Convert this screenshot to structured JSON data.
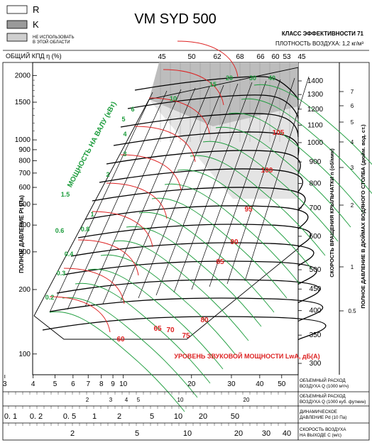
{
  "header": {
    "title": "VM SYD 500",
    "legend": [
      {
        "key": "R",
        "label": "R",
        "fill": "#ffffff"
      },
      {
        "key": "K",
        "label": "K",
        "fill": "#9a9a9a"
      },
      {
        "key": "na",
        "label": "НЕ ИСПОЛЬЗОВАТЬ",
        "label2": "В ЭТОЙ ОБЛАСТИ",
        "fill": "#cfcfcf"
      }
    ],
    "efficiency_class": "КЛАСС ЭФФЕКТИВНОСТИ 71",
    "air_density": "ПЛОТНОСТЬ ВОЗДУХА: 1,2 кг/м³",
    "total_efficiency_label": "ОБЩИЙ КПД η (%)"
  },
  "chart_data": {
    "type": "line",
    "ylabel": "ПОЛНОЕ ДАВЛЕНИЕ Pt (Па)",
    "xlabel": "ОБЪЕМНЫЙ РАСХОД ВОЗДУХА Q (1000 м³/ч)",
    "xlim": [
      1.8,
      60
    ],
    "ylim": [
      80,
      2300
    ],
    "x_scale": "log",
    "y_scale": "log",
    "y_ticks": [
      100,
      200,
      300,
      400,
      500,
      600,
      700,
      800,
      900,
      1000,
      1500,
      2000
    ],
    "x_ticks": [
      "2",
      "3",
      "4",
      "5",
      "6",
      "7",
      "8",
      "9",
      "10",
      "20",
      "30",
      "40",
      "50"
    ],
    "right_axis_rpm": {
      "label": "СКОРОСТЬ ВРАЩЕНИЯ КРЫЛЬЧАТКИ n (об/мин)",
      "ticks": [
        300,
        350,
        400,
        450,
        500,
        600,
        700,
        800,
        900,
        1000,
        1100,
        1200,
        1300,
        1400
      ]
    },
    "right_axis_inwg": {
      "label": "ПОЛНОЕ ДАВЛЕНИЕ В ДЮЙМАХ ВОДЯНОГО СТОЛБА (дюйм. вод. ст.)",
      "ticks": [
        "0.5",
        "1",
        "2",
        "3",
        "4",
        "5",
        "6",
        "7"
      ]
    },
    "efficiency_ticks": [
      "45",
      "50",
      "62",
      "68",
      "66",
      "60",
      "53",
      "45"
    ],
    "power_label": "МОЩНОСТЬ НА ВАЛУ (кВт)",
    "power_labels": [
      "0.2",
      "0.3",
      "0.4",
      "0.6",
      "0.8",
      "1",
      "1.5",
      "2",
      "3",
      "4",
      "5",
      "6",
      "10",
      "15",
      "20",
      "30",
      "40"
    ],
    "sound_label": "УРОВЕНЬ ЗВУКОВОЙ МОЩНОСТИ LwA, дБ(А)",
    "sound_labels": [
      "60",
      "65",
      "70",
      "75",
      "80",
      "85",
      "90",
      "95",
      "100",
      "105"
    ]
  },
  "bottom_scales": [
    {
      "label": "ОБЪЕМНЫЙ РАСХОД",
      "label2": "ВОЗДУХА Q (1000 м³/ч)"
    },
    {
      "label": "ОБЪЕМНЫЙ РАСХОД",
      "label2": "ВОЗДУХА Q (1000 куб. футмин)",
      "ticks": [
        "2",
        "3",
        "4",
        "5",
        "10",
        "20"
      ]
    },
    {
      "label": "ДИНАМИЧЕСКОЕ",
      "label2": "ДАВЛЕНИЕ Pd (10 Па)",
      "ticks": [
        "0. 1",
        "0. 2",
        "0. 5",
        "1",
        "2",
        "5",
        "10",
        "20",
        "50"
      ]
    },
    {
      "label": "СКОРОСТЬ ВОЗДУХА",
      "label2": "НА ВЫХОДЕ С (м/с)",
      "ticks": [
        "2",
        "5",
        "10",
        "20",
        "30",
        "40"
      ]
    }
  ]
}
